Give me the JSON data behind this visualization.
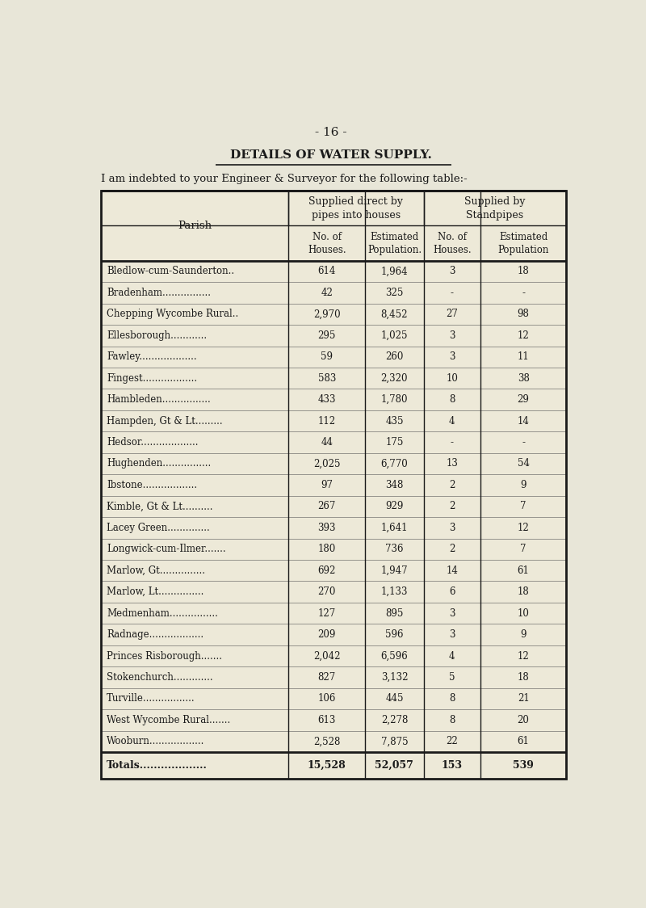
{
  "page_number": "- 16 -",
  "title": "DETAILS OF WATER SUPPLY.",
  "subtitle": "I am indebted to your Engineer & Surveyor for the following table:-",
  "header_top_left": "Parish",
  "header_group1": "Supplied direct by\npipes into houses",
  "header_group2": "Supplied by\nStandpipes",
  "col_headers": [
    "No. of\nHouses.",
    "Estimated\nPopulation.",
    "No. of\nHouses.",
    "Estimated\nPopulation"
  ],
  "rows": [
    [
      "Bledlow-cum-Saunderton..",
      "614",
      "1,964",
      "3",
      "18"
    ],
    [
      "Bradenham................",
      "42",
      "325",
      "-",
      "-"
    ],
    [
      "Chepping Wycombe Rural..",
      "2,970",
      "8,452",
      "27",
      "98"
    ],
    [
      "Ellesborough............",
      "295",
      "1,025",
      "3",
      "12"
    ],
    [
      "Fawley...................",
      "59",
      "260",
      "3",
      "11"
    ],
    [
      "Fingest..................",
      "583",
      "2,320",
      "10",
      "38"
    ],
    [
      "Hambleden................",
      "433",
      "1,780",
      "8",
      "29"
    ],
    [
      "Hampden, Gt & Lt.........",
      "112",
      "435",
      "4",
      "14"
    ],
    [
      "Hedsor...................",
      "44",
      "175",
      "-",
      "-"
    ],
    [
      "Hughenden................",
      "2,025",
      "6,770",
      "13",
      "54"
    ],
    [
      "Ibstone..................",
      "97",
      "348",
      "2",
      "9"
    ],
    [
      "Kimble, Gt & Lt..........",
      "267",
      "929",
      "2",
      "7"
    ],
    [
      "Lacey Green..............",
      "393",
      "1,641",
      "3",
      "12"
    ],
    [
      "Longwick-cum-Ilmer.......",
      "180",
      "736",
      "2",
      "7"
    ],
    [
      "Marlow, Gt...............",
      "692",
      "1,947",
      "14",
      "61"
    ],
    [
      "Marlow, Lt...............",
      "270",
      "1,133",
      "6",
      "18"
    ],
    [
      "Medmenham................",
      "127",
      "895",
      "3",
      "10"
    ],
    [
      "Radnage..................",
      "209",
      "596",
      "3",
      "9"
    ],
    [
      "Princes Risborough.......",
      "2,042",
      "6,596",
      "4",
      "12"
    ],
    [
      "Stokenchurch.............",
      "827",
      "3,132",
      "5",
      "18"
    ],
    [
      "Turville.................",
      "106",
      "445",
      "8",
      "21"
    ],
    [
      "West Wycombe Rural.......",
      "613",
      "2,278",
      "8",
      "20"
    ],
    [
      "Wooburn..................",
      "2,528",
      "7,875",
      "22",
      "61"
    ]
  ],
  "totals": [
    "Totals...................",
    "15,528",
    "52,057",
    "153",
    "539"
  ],
  "bg_color": "#e8e6d8",
  "text_color": "#1a1a1a",
  "table_bg": "#ede9d8"
}
